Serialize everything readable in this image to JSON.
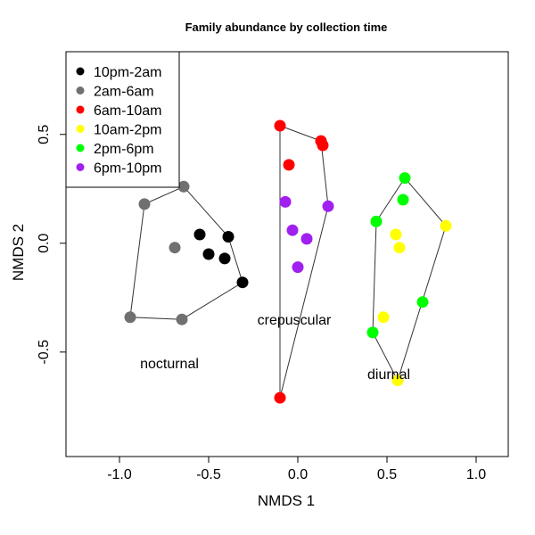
{
  "chart_data": {
    "type": "scatter",
    "title": "Family abundance by collection time",
    "xlabel": "NMDS 1",
    "ylabel": "NMDS 2",
    "xlim": [
      -1.3,
      1.18
    ],
    "ylim": [
      -0.98,
      0.88
    ],
    "x_ticks": [
      -1.0,
      -0.5,
      0.0,
      0.5,
      1.0
    ],
    "x_tick_labels": [
      "-1.0",
      "-0.5",
      "0.0",
      "0.5",
      "1.0"
    ],
    "y_ticks": [
      -0.5,
      0.0,
      0.5
    ],
    "y_tick_labels": [
      "-0.5",
      "0.0",
      "0.5"
    ],
    "legend_position": "top-left",
    "series": [
      {
        "name": "10pm-2am",
        "color": "#000000",
        "points": [
          [
            -0.55,
            0.04
          ],
          [
            -0.5,
            -0.05
          ],
          [
            -0.41,
            -0.07
          ],
          [
            -0.39,
            0.03
          ],
          [
            -0.31,
            -0.18
          ]
        ]
      },
      {
        "name": "2am-6am",
        "color": "#707070",
        "points": [
          [
            -0.94,
            -0.34
          ],
          [
            -0.86,
            0.18
          ],
          [
            -0.69,
            -0.02
          ],
          [
            -0.65,
            -0.35
          ],
          [
            -0.64,
            0.26
          ]
        ]
      },
      {
        "name": "6am-10am",
        "color": "#ff0000",
        "points": [
          [
            -0.1,
            0.54
          ],
          [
            -0.05,
            0.36
          ],
          [
            0.13,
            0.47
          ],
          [
            0.14,
            0.45
          ],
          [
            -0.1,
            -0.71
          ]
        ]
      },
      {
        "name": "10am-2pm",
        "color": "#ffff00",
        "points": [
          [
            0.48,
            -0.34
          ],
          [
            0.55,
            0.04
          ],
          [
            0.57,
            -0.02
          ],
          [
            0.83,
            0.08
          ],
          [
            0.56,
            -0.63
          ]
        ]
      },
      {
        "name": "2pm-6pm",
        "color": "#00ff00",
        "points": [
          [
            0.44,
            0.1
          ],
          [
            0.59,
            0.2
          ],
          [
            0.6,
            0.3
          ],
          [
            0.7,
            -0.27
          ],
          [
            0.42,
            -0.41
          ]
        ]
      },
      {
        "name": "6pm-10pm",
        "color": "#a020f0",
        "points": [
          [
            -0.07,
            0.19
          ],
          [
            -0.03,
            0.06
          ],
          [
            0.05,
            0.02
          ],
          [
            0.0,
            -0.11
          ],
          [
            0.17,
            0.17
          ]
        ]
      }
    ],
    "hulls": [
      {
        "name": "nocturnal",
        "points": [
          [
            -0.64,
            0.26
          ],
          [
            -0.86,
            0.18
          ],
          [
            -0.94,
            -0.34
          ],
          [
            -0.65,
            -0.35
          ],
          [
            -0.31,
            -0.18
          ],
          [
            -0.39,
            0.03
          ]
        ]
      },
      {
        "name": "crepuscular",
        "points": [
          [
            -0.1,
            0.54
          ],
          [
            0.13,
            0.47
          ],
          [
            0.17,
            0.17
          ],
          [
            -0.1,
            -0.71
          ]
        ]
      },
      {
        "name": "diurnal",
        "points": [
          [
            0.6,
            0.3
          ],
          [
            0.44,
            0.1
          ],
          [
            0.42,
            -0.41
          ],
          [
            0.56,
            -0.63
          ],
          [
            0.83,
            0.08
          ]
        ]
      }
    ],
    "annotations": [
      {
        "text": "nocturnal",
        "x": -0.72,
        "y": -0.55
      },
      {
        "text": "crepuscular",
        "x": -0.02,
        "y": -0.35
      },
      {
        "text": "diurnal",
        "x": 0.51,
        "y": -0.6
      }
    ]
  }
}
